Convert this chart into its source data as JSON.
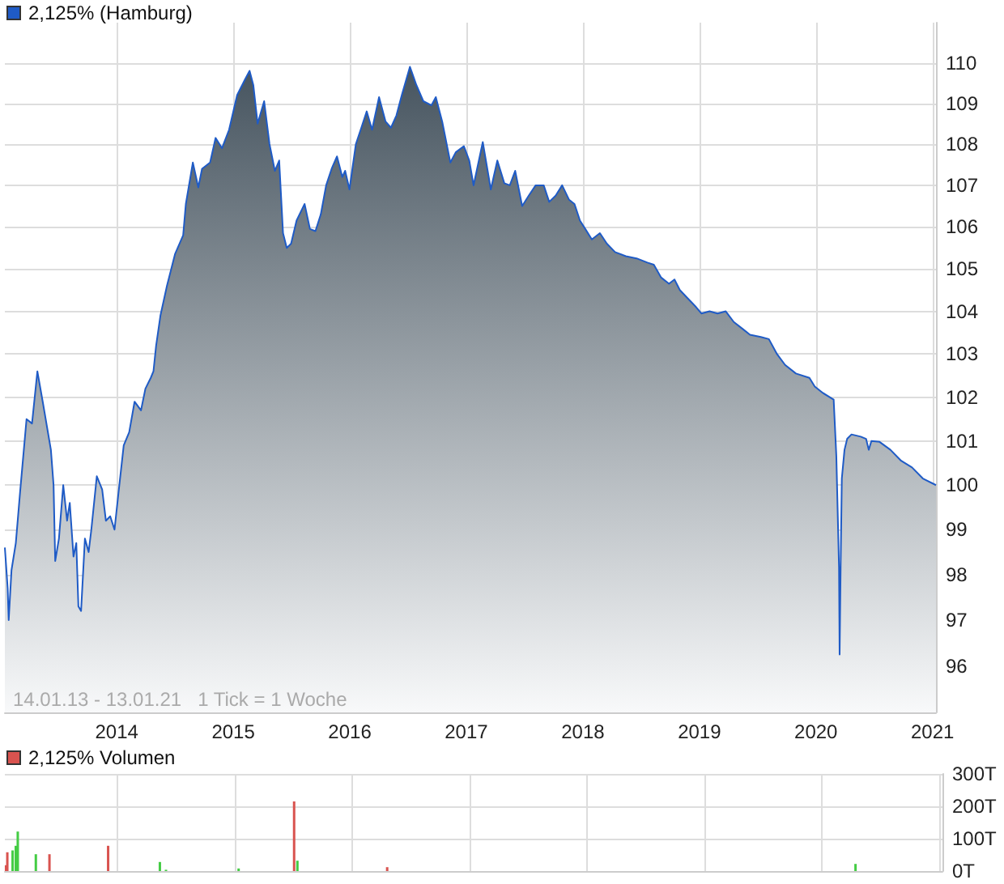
{
  "chart_data": [
    {
      "type": "area",
      "log": true,
      "grid": true,
      "legend": "top left",
      "ylim": [
        95,
        111
      ],
      "yticks": [
        96,
        97,
        98,
        99,
        100,
        101,
        102,
        103,
        104,
        105,
        106,
        107,
        108,
        109,
        110
      ],
      "xlim": [
        2013.04,
        2021.03
      ],
      "xticks": [
        2014,
        2015,
        2016,
        2017,
        2018,
        2019,
        2020,
        2021
      ],
      "annotations": [
        "14.01.13 - 13.01.21   1 Tick = 1 Woche"
      ],
      "series": [
        {
          "name": "2,125% (Hamburg)",
          "color": "#1f5bc6",
          "x": [
            2013.04,
            2013.064,
            2013.073,
            2013.097,
            2013.134,
            2013.171,
            2013.226,
            2013.273,
            2013.319,
            2013.365,
            2013.435,
            2013.458,
            2013.472,
            2013.504,
            2013.541,
            2013.574,
            2013.597,
            2013.629,
            2013.653,
            2013.671,
            2013.694,
            2013.727,
            2013.759,
            2013.782,
            2013.829,
            2013.875,
            2013.907,
            2013.944,
            2013.981,
            2014.014,
            2014.06,
            2014.107,
            2014.153,
            2014.208,
            2014.246,
            2014.292,
            2014.315,
            2014.338,
            2014.375,
            2014.431,
            2014.5,
            2014.57,
            2014.593,
            2014.653,
            2014.7,
            2014.732,
            2014.801,
            2014.848,
            2014.903,
            2014.964,
            2015.033,
            2015.103,
            2015.14,
            2015.172,
            2015.209,
            2015.265,
            2015.311,
            2015.357,
            2015.394,
            2015.427,
            2015.459,
            2015.496,
            2015.543,
            2015.612,
            2015.658,
            2015.705,
            2015.751,
            2015.797,
            2015.844,
            2015.89,
            2015.936,
            2015.96,
            2015.997,
            2016.052,
            2016.099,
            2016.145,
            2016.191,
            2016.251,
            2016.307,
            2016.353,
            2016.4,
            2016.446,
            2016.516,
            2016.571,
            2016.631,
            2016.701,
            2016.738,
            2016.793,
            2016.863,
            2016.909,
            2016.979,
            2017.025,
            2017.062,
            2017.141,
            2017.21,
            2017.266,
            2017.326,
            2017.373,
            2017.419,
            2017.479,
            2017.535,
            2017.595,
            2017.664,
            2017.711,
            2017.766,
            2017.822,
            2017.882,
            2017.928,
            2017.975,
            2018.021,
            2018.077,
            2018.146,
            2018.206,
            2018.276,
            2018.369,
            2018.461,
            2018.554,
            2018.609,
            2018.67,
            2018.739,
            2018.786,
            2018.832,
            2018.901,
            2018.971,
            2019.017,
            2019.087,
            2019.156,
            2019.226,
            2019.295,
            2019.365,
            2019.434,
            2019.527,
            2019.596,
            2019.666,
            2019.735,
            2019.828,
            2019.944,
            2019.99,
            2020.06,
            2020.152,
            2020.175,
            2020.198,
            2020.203,
            2020.212,
            2020.222,
            2020.245,
            2020.268,
            2020.305,
            2020.384,
            2020.43,
            2020.453,
            2020.476,
            2020.546,
            2020.639,
            2020.731,
            2020.824,
            2020.917,
            2021.03
          ],
          "values": [
            98.6,
            97.7,
            97.0,
            98.1,
            98.7,
            99.85,
            101.5,
            101.4,
            102.6,
            101.9,
            100.8,
            100.0,
            98.3,
            98.8,
            100.0,
            99.2,
            99.6,
            98.4,
            98.7,
            97.3,
            97.2,
            98.8,
            98.5,
            99.0,
            100.2,
            99.9,
            99.2,
            99.3,
            99.0,
            99.8,
            100.9,
            101.2,
            101.9,
            101.7,
            102.2,
            102.45,
            102.6,
            103.2,
            103.9,
            104.6,
            105.35,
            105.8,
            106.55,
            107.55,
            106.95,
            107.4,
            107.55,
            108.15,
            107.9,
            108.35,
            109.2,
            109.6,
            109.8,
            109.45,
            108.5,
            109.05,
            108.0,
            107.35,
            107.6,
            105.85,
            105.5,
            105.6,
            106.15,
            106.55,
            105.95,
            105.9,
            106.3,
            107.0,
            107.4,
            107.7,
            107.2,
            107.35,
            106.9,
            108.0,
            108.4,
            108.8,
            108.35,
            109.15,
            108.55,
            108.4,
            108.7,
            109.2,
            109.9,
            109.45,
            109.05,
            108.95,
            109.15,
            108.55,
            107.55,
            107.8,
            107.95,
            107.6,
            107.0,
            108.05,
            106.9,
            107.6,
            107.05,
            107.0,
            107.35,
            106.5,
            106.75,
            107.0,
            107.0,
            106.6,
            106.75,
            107.0,
            106.65,
            106.55,
            106.15,
            105.95,
            105.7,
            105.85,
            105.6,
            105.4,
            105.3,
            105.25,
            105.15,
            105.1,
            104.8,
            104.65,
            104.75,
            104.5,
            104.3,
            104.1,
            103.95,
            104.0,
            103.95,
            104.0,
            103.75,
            103.6,
            103.45,
            103.4,
            103.35,
            103.0,
            102.75,
            102.55,
            102.45,
            102.25,
            102.1,
            101.95,
            100.65,
            98.15,
            96.25,
            98.2,
            100.15,
            100.8,
            101.05,
            101.15,
            101.1,
            101.05,
            100.8,
            101.0,
            100.98,
            100.8,
            100.55,
            100.4,
            100.15,
            100.0
          ]
        }
      ]
    },
    {
      "type": "bar",
      "grid": true,
      "legend": "top left",
      "tick_labels": "y",
      "ylim": [
        0,
        300
      ],
      "yticks": [
        {
          "value": 0,
          "label": "0T"
        },
        {
          "value": 100,
          "label": "100T"
        },
        {
          "value": 200,
          "label": "200T"
        },
        {
          "value": 300,
          "label": "300T"
        }
      ],
      "xlim": [
        2013.04,
        2021.03
      ],
      "xticks": [
        2014,
        2015,
        2016,
        2017,
        2018,
        2019,
        2020,
        2021
      ],
      "series": [
        {
          "name": "2,125% Volumen",
          "color": "#d9534f",
          "x": [
            2013.05,
            2013.061,
            2013.106,
            2013.133,
            2013.15,
            2013.304,
            2013.42,
            2013.92,
            2014.361,
            2014.413,
            2015.032,
            2015.505,
            2015.533,
            2016.298,
            2020.289
          ],
          "values": [
            18,
            58,
            64,
            78,
            122,
            52,
            52,
            78,
            28,
            4,
            8,
            215,
            32,
            12,
            22
          ],
          "colors": [
            "#d9534f",
            "#d9534f",
            "#44cc44",
            "#44cc44",
            "#44cc44",
            "#44cc44",
            "#d9534f",
            "#d9534f",
            "#44cc44",
            "#44cc44",
            "#44cc44",
            "#d9534f",
            "#44cc44",
            "#d9534f",
            "#44cc44"
          ]
        }
      ]
    }
  ]
}
